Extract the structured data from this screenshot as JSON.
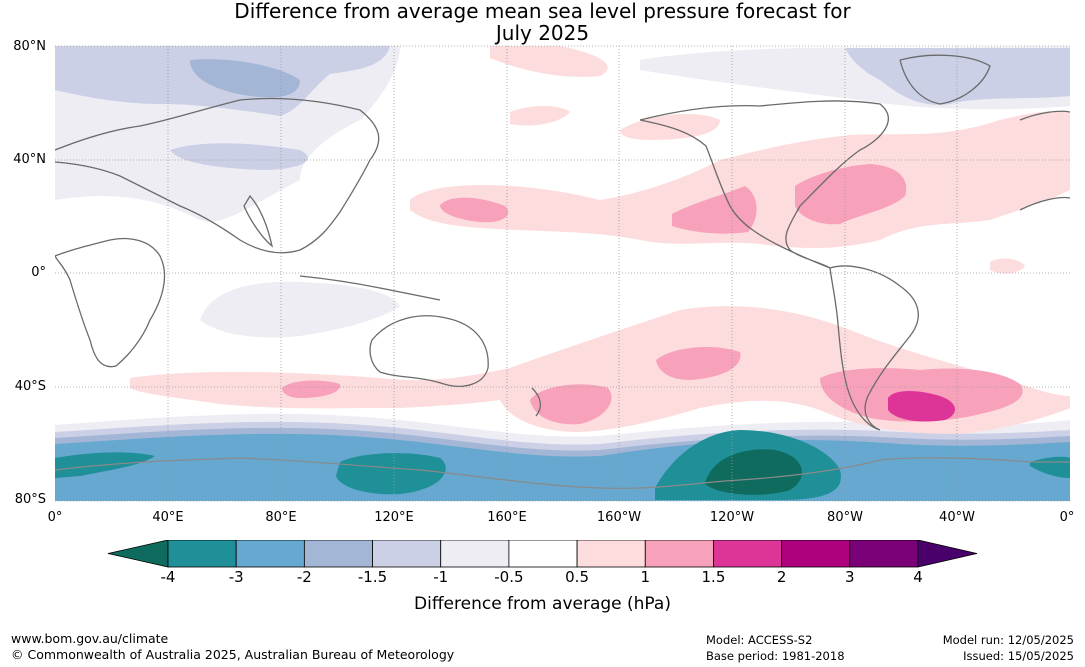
{
  "title_line1": "Difference from average mean sea level pressure forecast for",
  "title_line2": "July 2025",
  "lat_labels": [
    "80°N",
    "40°N",
    "0°",
    "40°S",
    "80°S"
  ],
  "lon_labels": [
    "0°",
    "40°E",
    "80°E",
    "120°E",
    "160°E",
    "160°W",
    "120°W",
    "80°W",
    "40°W",
    "0°"
  ],
  "legend": {
    "ticks": [
      "-4",
      "-3",
      "-2",
      "-1.5",
      "-1",
      "-0.5",
      "0.5",
      "1",
      "1.5",
      "2",
      "3",
      "4"
    ],
    "colors": [
      "#0e6b5e",
      "#1f8f98",
      "#66a8d0",
      "#a3b6d6",
      "#ccd0e6",
      "#efedf4",
      "#ffffff",
      "#fddcdd",
      "#f7a1bb",
      "#dd3497",
      "#ae017e",
      "#7a0177",
      "#49006a"
    ],
    "title": "Difference from average (hPa)"
  },
  "footer": {
    "url": "www.bom.gov.au/climate",
    "copyright": "© Commonwealth of Australia 2025, Australian Bureau of Meteorology",
    "model": "Model: ACCESS-S2",
    "base_period": "Base period: 1981-2018",
    "model_run": "Model run: 12/05/2025",
    "issued": "Issued: 15/05/2025"
  }
}
